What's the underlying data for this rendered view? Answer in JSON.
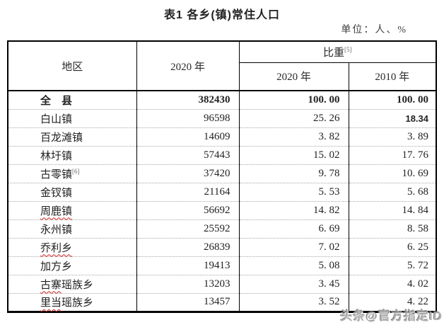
{
  "page": {
    "title": "表1 各乡(镇)常住人口",
    "unit_note": "单位：人、%",
    "watermark": "头条@官方指定ID"
  },
  "table": {
    "header": {
      "region": "地区",
      "col2020": "2020 年",
      "share": "比重",
      "share_footnote": "[5]",
      "share_2020": "2020 年",
      "share_2010": "2010 年"
    },
    "rows": [
      {
        "name": "全　县",
        "pop": "382430",
        "p2020": "100. 00",
        "p2010": "100. 00",
        "bold": true
      },
      {
        "name": "白山镇",
        "pop": "96598",
        "p2020": "25. 26",
        "p2010": "18.34",
        "patched": true
      },
      {
        "name": "百龙滩镇",
        "pop": "14609",
        "p2020": "3. 82",
        "p2010": "3. 89"
      },
      {
        "name": "林圩镇",
        "pop": "57443",
        "p2020": "15. 02",
        "p2010": "17. 76"
      },
      {
        "name": "古零镇",
        "sup": "[6]",
        "pop": "37420",
        "p2020": "9. 78",
        "p2010": "10. 69"
      },
      {
        "name": "金钗镇",
        "pop": "21164",
        "p2020": "5. 53",
        "p2010": "5. 68"
      },
      {
        "name": "周鹿镇",
        "wavy": "周鹿镇",
        "pop": "56692",
        "p2020": "14. 82",
        "p2010": "14. 84"
      },
      {
        "name": "永州镇",
        "pop": "25592",
        "p2020": "6. 69",
        "p2010": "8. 58"
      },
      {
        "name": "乔利乡",
        "wavy": "乔利乡",
        "pop": "26839",
        "p2020": "7. 02",
        "p2010": "6. 25"
      },
      {
        "name": "加方乡",
        "pop": "19413",
        "p2020": "5. 08",
        "p2010": "5. 72"
      },
      {
        "name": "古寨瑶族乡",
        "wavy": "古寨",
        "pop": "13203",
        "p2020": "3. 45",
        "p2010": "4. 02"
      },
      {
        "name": "里当瑶族乡",
        "wavy": "里当",
        "pop": "13457",
        "p2020": "3. 52",
        "p2010": "4. 22"
      }
    ]
  }
}
